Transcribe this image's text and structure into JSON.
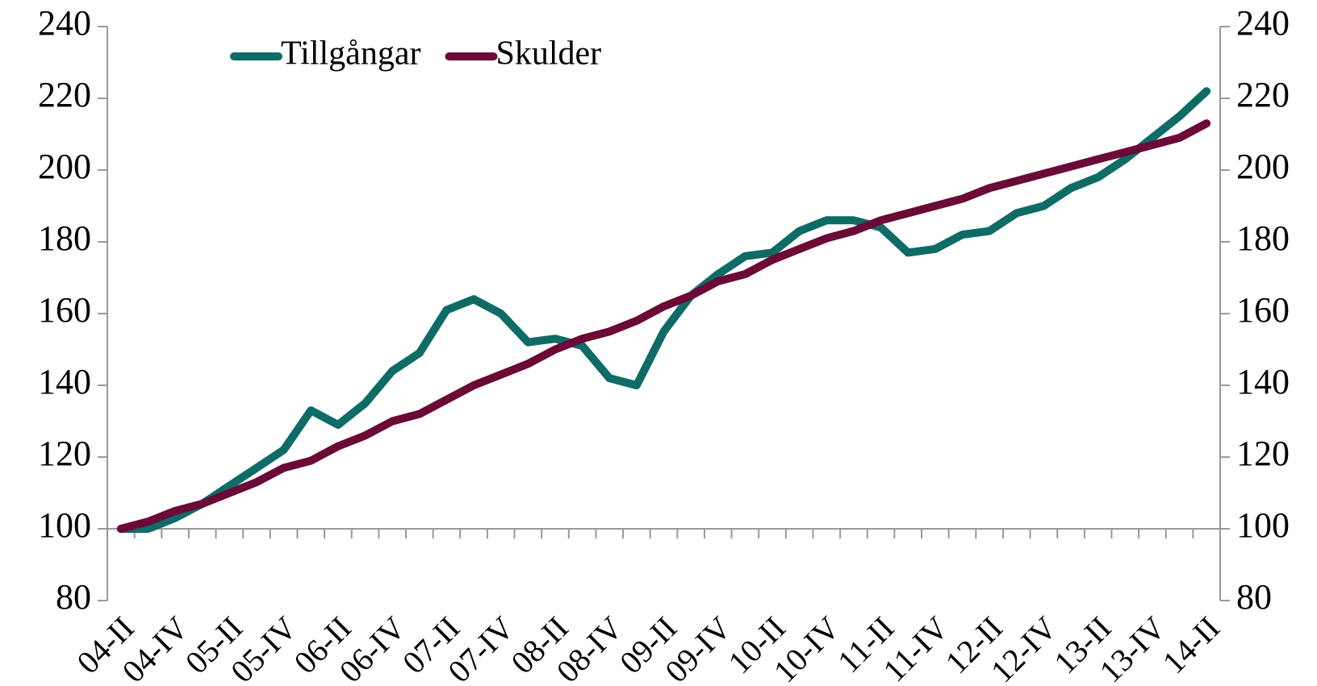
{
  "chart_data": {
    "type": "line",
    "categories": [
      "04-II",
      null,
      "04-IV",
      null,
      "05-II",
      null,
      "05-IV",
      null,
      "06-II",
      null,
      "06-IV",
      null,
      "07-II",
      null,
      "07-IV",
      null,
      "08-II",
      null,
      "08-IV",
      null,
      "09-II",
      null,
      "09-IV",
      null,
      "10-II",
      null,
      "10-IV",
      null,
      "11-II",
      null,
      "11-IV",
      null,
      "12-II",
      null,
      "12-IV",
      null,
      "13-II",
      null,
      "13-IV",
      null,
      "14-II"
    ],
    "series": [
      {
        "name": "Tillgångar",
        "color": "#0f6b66",
        "values": [
          100,
          100,
          103,
          107,
          112,
          117,
          122,
          133,
          129,
          135,
          144,
          149,
          161,
          164,
          160,
          152,
          153,
          151,
          142,
          140,
          155,
          165,
          171,
          176,
          177,
          183,
          186,
          186,
          184,
          177,
          178,
          182,
          183,
          188,
          190,
          195,
          198,
          203,
          209,
          215,
          222
        ]
      },
      {
        "name": "Skulder",
        "color": "#6b0a36",
        "values": [
          100,
          102,
          105,
          107,
          110,
          113,
          117,
          119,
          123,
          126,
          130,
          132,
          136,
          140,
          143,
          146,
          150,
          153,
          155,
          158,
          162,
          165,
          169,
          171,
          175,
          178,
          181,
          183,
          186,
          188,
          190,
          192,
          195,
          197,
          199,
          201,
          203,
          205,
          207,
          209,
          213
        ]
      }
    ],
    "ylim": [
      80,
      240
    ],
    "yticks": [
      80,
      100,
      120,
      140,
      160,
      180,
      200,
      220,
      240
    ],
    "y2lim": [
      80,
      240
    ],
    "y2ticks": [
      80,
      100,
      120,
      140,
      160,
      180,
      200,
      220,
      240
    ],
    "xaxis_crosses": 100,
    "legend": "top-left",
    "grid": false
  }
}
